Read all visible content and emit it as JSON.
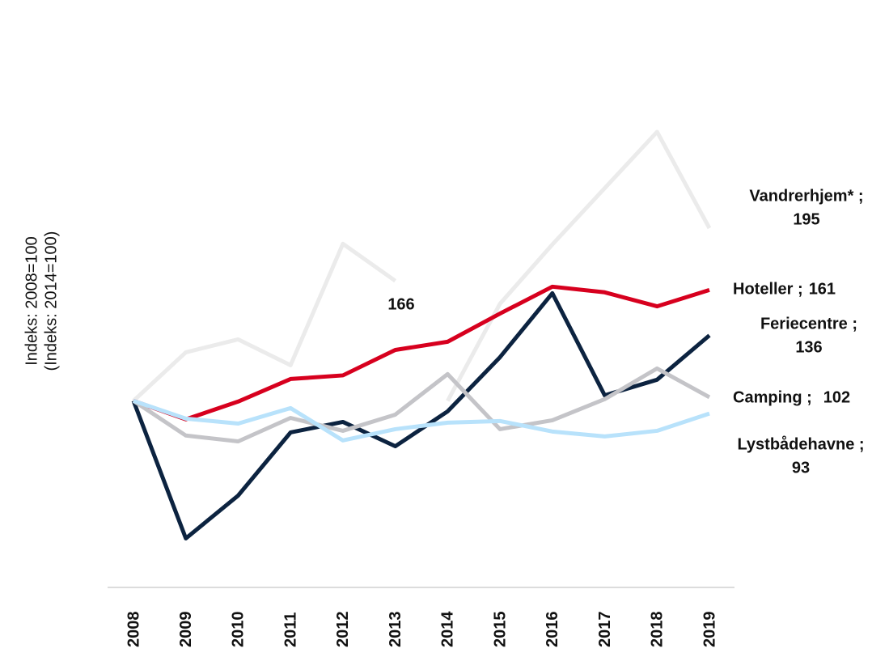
{
  "chart_data": {
    "type": "line",
    "y_label": [
      "Indeks: 2008=100",
      "(Indeks: 2014=100)"
    ],
    "categories": [
      "2008",
      "2009",
      "2010",
      "2011",
      "2012",
      "2013",
      "2014",
      "2015",
      "2016",
      "2017",
      "2018",
      "2019"
    ],
    "ylim": [
      0,
      260
    ],
    "series": [
      {
        "color": "#ebebeb",
        "values": [
          100,
          126.7,
          133.8,
          119.6,
          186.4,
          166,
          null,
          null,
          null,
          null,
          null,
          null
        ]
      },
      {
        "name": "Vandrerhjem* ;",
        "color": "#ebebeb",
        "values": [
          null,
          null,
          null,
          null,
          null,
          null,
          100,
          153.4,
          186,
          217,
          248,
          195
        ]
      },
      {
        "name": "Hoteller ;",
        "color": "#d7001e",
        "values": [
          100,
          89.8,
          99.6,
          112,
          114,
          128,
          132.5,
          148,
          162.8,
          159.7,
          152,
          161
        ]
      },
      {
        "name": "Feriecentre ;",
        "color": "#0c2340",
        "values": [
          100,
          24.3,
          47.9,
          82.6,
          88.4,
          75,
          94.2,
          124,
          159.2,
          103,
          111.6,
          136
        ]
      },
      {
        "name": "Camping ;",
        "color": "#c4c4c8",
        "values": [
          100,
          80.9,
          77.7,
          90.6,
          83.5,
          92.4,
          114.7,
          84.4,
          89.3,
          100.9,
          117.8,
          102
        ]
      },
      {
        "name": "Lystbådehavne ;",
        "color": "#b8e2fb",
        "values": [
          100,
          90.2,
          87.5,
          96,
          78.2,
          84.4,
          88,
          88.9,
          83.1,
          80.4,
          83.5,
          93
        ]
      }
    ]
  }
}
